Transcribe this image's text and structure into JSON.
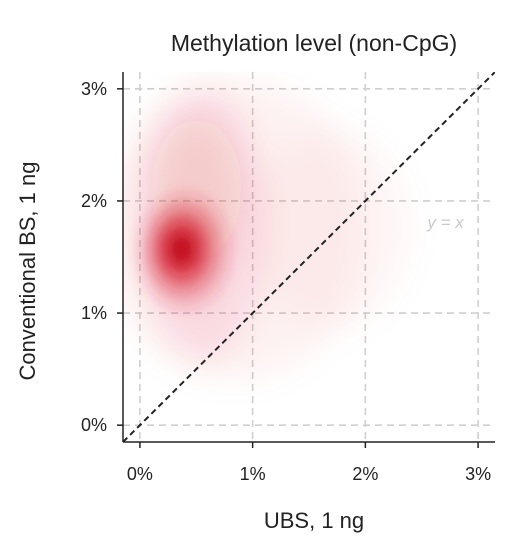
{
  "chart_data": {
    "type": "heatmap",
    "title": "Methylation level (non-CpG)",
    "xlabel": "UBS, 1 ng",
    "ylabel": "Conventional BS, 1 ng",
    "xlim": [
      -0.15,
      3.15
    ],
    "ylim": [
      -0.15,
      3.15
    ],
    "x_ticks": [
      0,
      1,
      2,
      3
    ],
    "y_ticks": [
      0,
      1,
      2,
      3
    ],
    "x_tick_labels": [
      "0%",
      "1%",
      "2%",
      "3%"
    ],
    "y_tick_labels": [
      "0%",
      "1%",
      "2%",
      "3%"
    ],
    "grid": true,
    "grid_style": "dashed",
    "density_peak": {
      "x": 0.37,
      "y": 1.57
    },
    "density_color": "#d6202f",
    "reference_line": {
      "label": "y = x",
      "slope": 1,
      "intercept": 0,
      "style": "dashed",
      "color": "#222222"
    }
  }
}
